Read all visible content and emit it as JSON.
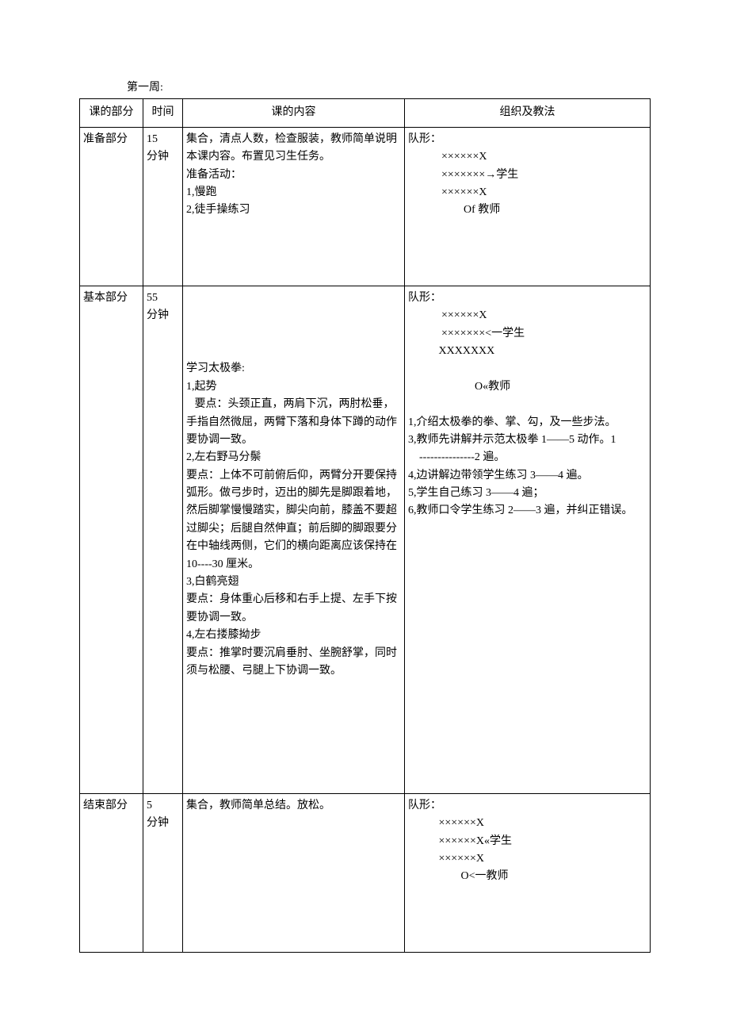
{
  "week_title": "第一周:",
  "headers": {
    "part": "课的部分",
    "time": "时间",
    "content": "课的内容",
    "org": "组织及教法"
  },
  "rows": {
    "prep": {
      "part": "准备部分",
      "time": "15\n分钟",
      "content": "集合，清点人数，检查服装，教师简单说明本课内容。布置见习生任务。\n准备活动：\n1,慢跑\n2,徒手操练习",
      "formation": "队形：\n            ××××××X\n            ×××××××→学生\n            ××××××X\n                    Of 教师"
    },
    "main": {
      "part": "基本部分",
      "time": "55\n分钟",
      "content": "\n\n\n\n学习太极拳:\n1,起势\n   要点：头颈正直，两肩下沉，两肘松垂，手指自然微屈，两臂下落和身体下蹲的动作要协调一致。\n2,左右野马分鬃\n要点：上体不可前俯后仰，两臂分开要保持弧形。做弓步时，迈出的脚先是脚跟着地，然后脚掌慢慢踏实，脚尖向前，膝盖不要超过脚尖；后腿自然伸直；前后脚的脚跟要分在中轴线两侧，它们的横向距离应该保持在 10----30 厘米。\n3,白鹤亮翅\n要点：身体重心后移和右手上提、左手下按要协调一致。\n4,左右搂膝拗步\n要点：推掌时要沉肩垂肘、坐腕舒掌，同时须与松腰、弓腿上下协调一致。",
      "formation": "队形：\n            ××××××X\n            ×××××××<一学生\n           XXXXXXX\n\n                        O«教师",
      "org_text": "\n1,介绍太极拳的拳、掌、勾，及一些步法。\n3,教师先讲解并示范太极拳 1——5 动作。1\n    ---------------2 遍。\n4,边讲解边带领学生练习 3——4 遍。\n5,学生自己练习 3——4 遍；\n6,教师口令学生练习 2——3 遍，并纠正错误。"
    },
    "end": {
      "part": "结束部分",
      "time": "5\n分钟",
      "content": "集合，教师简单总结。放松。",
      "formation": "队形：\n           ××××××X\n           ××××××X«学生\n           ××××××X\n                   O<一教师"
    }
  }
}
